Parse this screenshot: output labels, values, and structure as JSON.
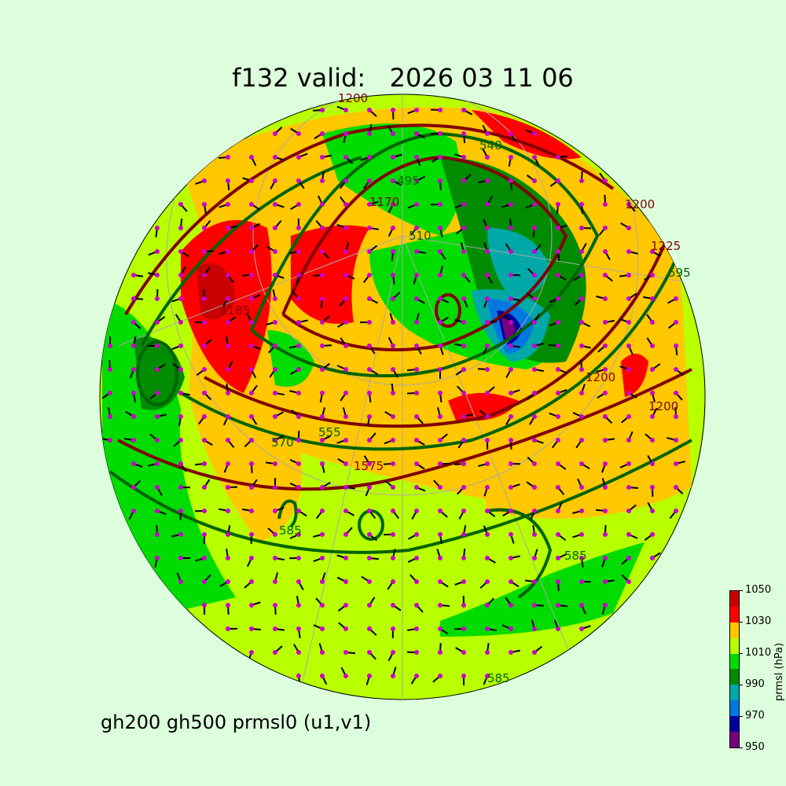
{
  "title": {
    "forecast_hour": "f132 valid:",
    "valid_time": "2026 03 11 06"
  },
  "subtitle": "gh200 gh500 prmsl0 (u1,v1)",
  "colorbar": {
    "label": "prmsl (hPa)",
    "ticks": [
      "950",
      "970",
      "990",
      "1010",
      "1030",
      "1050"
    ],
    "levels": [
      950,
      960,
      970,
      980,
      990,
      1000,
      1010,
      1020,
      1030,
      1040,
      1050
    ],
    "colors": [
      "#7a007a",
      "#0000a0",
      "#0078e0",
      "#00a8a8",
      "#008c00",
      "#00dc00",
      "#b8ff00",
      "#ffc800",
      "#ff0000",
      "#c80000"
    ]
  },
  "map": {
    "projection": "orthographic",
    "background_field_color": "#b8ff00",
    "gh500_contour_color": "#006400",
    "gh200_contour_color": "#800000",
    "wind_barb_color": "#000000",
    "wind_dot_color": "#cc00cc",
    "contour_labels_gh500": [
      "510",
      "495",
      "540",
      "555",
      "570",
      "585",
      "585",
      "585",
      "595"
    ],
    "contour_labels_gh200": [
      "1200",
      "1170",
      "1185",
      "1200",
      "1200",
      "1200",
      "1225",
      "1575"
    ]
  }
}
